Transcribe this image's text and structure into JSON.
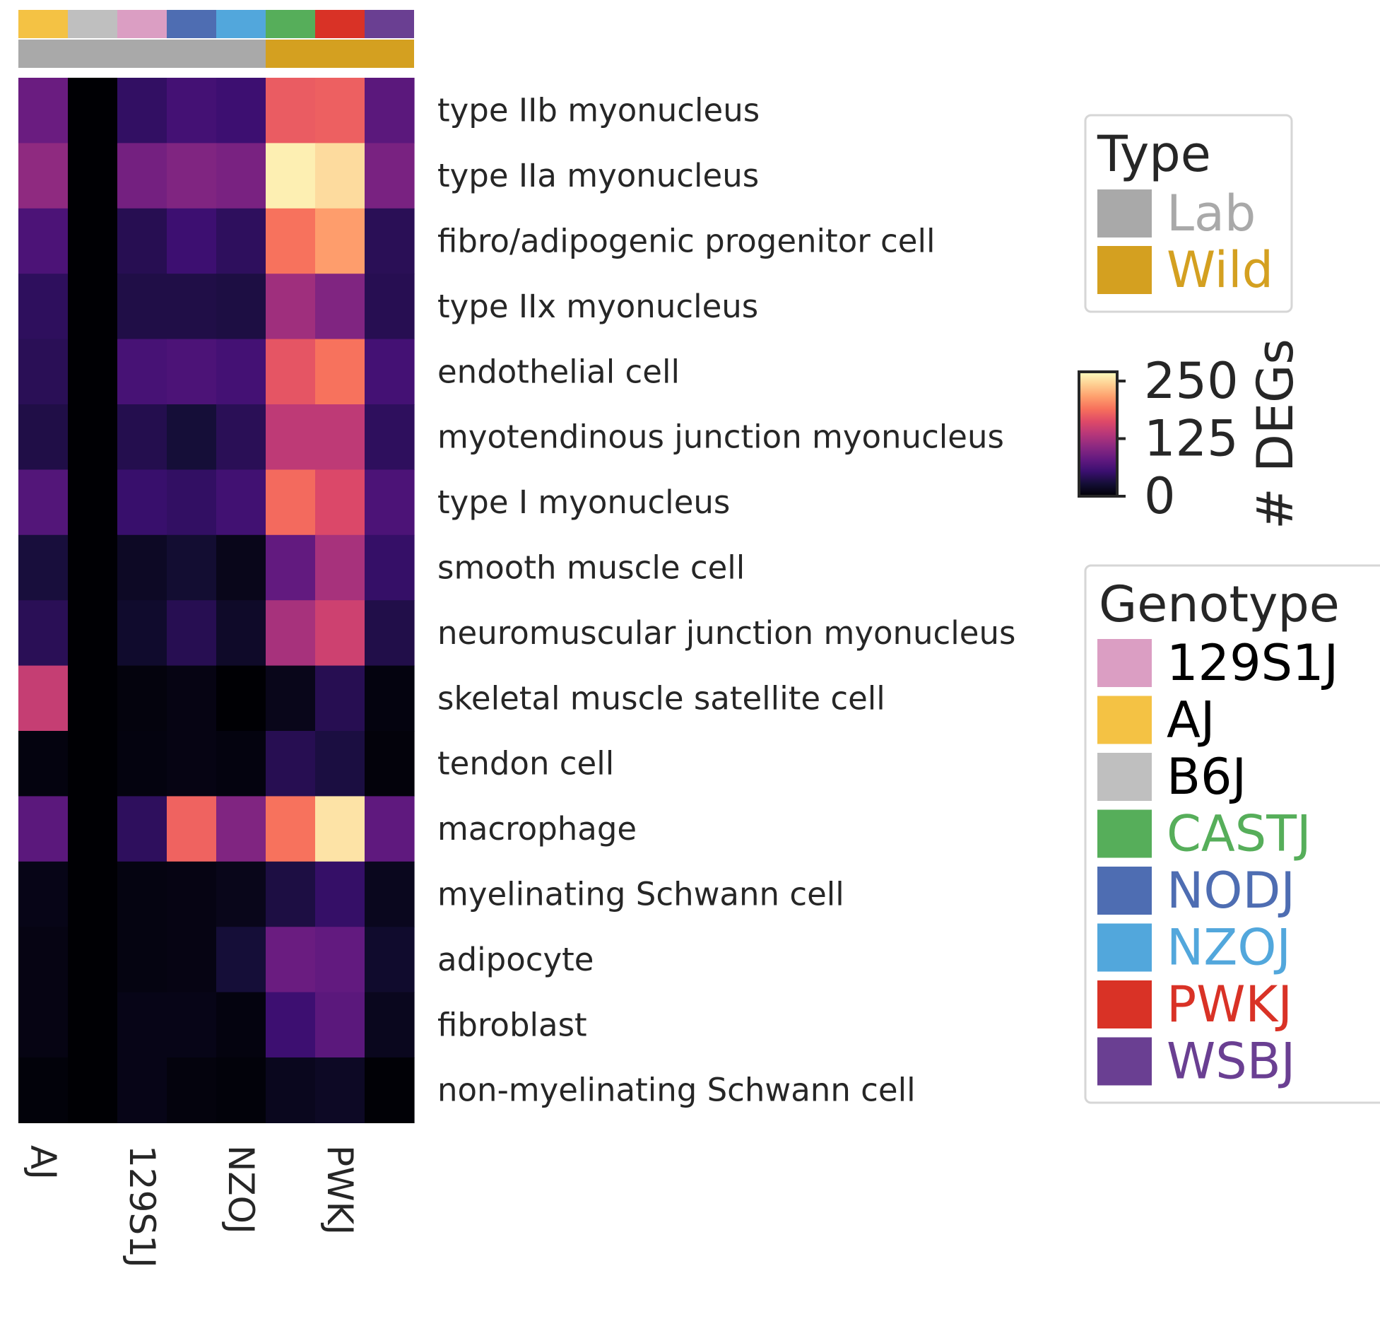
{
  "chart_data": {
    "type": "heatmap",
    "title": "",
    "xlabel": "",
    "ylabel": "",
    "columns": [
      "AJ",
      "B6J",
      "129S1J",
      "NODJ",
      "NZOJ",
      "CASTJ",
      "PWKJ",
      "WSBJ"
    ],
    "x_tick_labels": [
      "AJ",
      "129S1J",
      "NZOJ",
      "PWKJ"
    ],
    "column_type": [
      "Lab",
      "Lab",
      "Lab",
      "Lab",
      "Lab",
      "Wild",
      "Wild",
      "Wild"
    ],
    "rows": [
      "type IIb myonucleus",
      "type IIa myonucleus",
      "fibro/adipogenic progenitor cell",
      "type IIx myonucleus",
      "endothelial cell",
      "myotendinous junction myonucleus",
      "type I myonucleus",
      "smooth muscle cell",
      "neuromuscular junction myonucleus",
      "skeletal muscle satellite cell",
      "tendon cell",
      "macrophage",
      "myelinating Schwann cell",
      "adipocyte",
      "fibroblast",
      "non-myelinating Schwann cell"
    ],
    "values": [
      [
        85,
        0,
        48,
        60,
        55,
        175,
        178,
        75
      ],
      [
        110,
        0,
        92,
        100,
        95,
        262,
        250,
        95
      ],
      [
        65,
        0,
        40,
        55,
        45,
        190,
        215,
        42
      ],
      [
        45,
        0,
        35,
        35,
        33,
        120,
        100,
        40
      ],
      [
        42,
        0,
        62,
        65,
        60,
        170,
        190,
        60
      ],
      [
        35,
        0,
        38,
        28,
        42,
        140,
        140,
        45
      ],
      [
        70,
        0,
        52,
        48,
        58,
        185,
        160,
        65
      ],
      [
        30,
        0,
        18,
        25,
        12,
        80,
        125,
        50
      ],
      [
        42,
        0,
        22,
        40,
        20,
        125,
        150,
        36
      ],
      [
        145,
        0,
        5,
        8,
        0,
        12,
        40,
        6
      ],
      [
        6,
        0,
        6,
        8,
        6,
        40,
        32,
        4
      ],
      [
        75,
        0,
        45,
        180,
        100,
        190,
        255,
        78
      ],
      [
        10,
        0,
        7,
        8,
        12,
        33,
        50,
        14
      ],
      [
        8,
        0,
        7,
        8,
        28,
        85,
        80,
        22
      ],
      [
        8,
        0,
        10,
        10,
        6,
        55,
        75,
        14
      ],
      [
        3,
        0,
        10,
        5,
        3,
        14,
        18,
        1
      ]
    ],
    "colormap": "magma",
    "vmin": 0,
    "vmax": 270,
    "colorbar": {
      "label": "# DEGs",
      "ticks": [
        0,
        125,
        250
      ],
      "tick_labels": [
        "0",
        "125",
        "250"
      ]
    },
    "type_legend": {
      "title": "Type",
      "entries": [
        {
          "label": "Lab",
          "color": "#a9a9a9"
        },
        {
          "label": "Wild",
          "color": "#d4a020"
        }
      ]
    },
    "genotype_legend": {
      "title": "Genotype",
      "entries": [
        {
          "label": "129S1J",
          "color": "#db9ec3",
          "text_color": "#000000"
        },
        {
          "label": "AJ",
          "color": "#f4c244",
          "text_color": "#000000"
        },
        {
          "label": "B6J",
          "color": "#bfbfbf",
          "text_color": "#000000"
        },
        {
          "label": "CASTJ",
          "color": "#56ae5a",
          "text_color": "#56ae5a"
        },
        {
          "label": "NODJ",
          "color": "#4e6db2",
          "text_color": "#4e6db2"
        },
        {
          "label": "NZOJ",
          "color": "#52a7dc",
          "text_color": "#52a7dc"
        },
        {
          "label": "PWKJ",
          "color": "#d93226",
          "text_color": "#d93226"
        },
        {
          "label": "WSBJ",
          "color": "#6a3f92",
          "text_color": "#6a3f92"
        }
      ]
    }
  }
}
